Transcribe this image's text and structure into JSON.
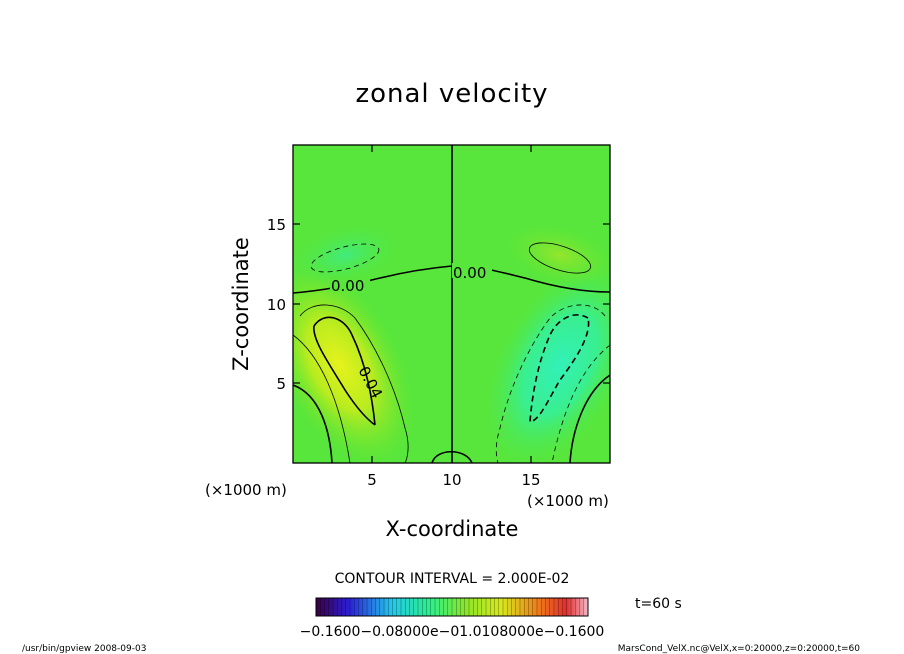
{
  "chart_data": {
    "type": "heatmap",
    "title": "zonal velocity",
    "xlabel": "X-coordinate",
    "ylabel": "Z-coordinate",
    "x_unit": "(×1000 m)",
    "y_unit": "(×1000 m)",
    "xlim": [
      0,
      20
    ],
    "ylim": [
      0,
      20
    ],
    "x_ticks": [
      "5",
      "10",
      "15"
    ],
    "y_ticks": [
      "5",
      "10",
      "15"
    ],
    "contour_interval": "CONTOUR INTERVAL = 2.000E-02",
    "contour_labels": [
      "0.00",
      "0.00",
      "0.04"
    ],
    "colorbar_labels": "−0.1600−0.08000e−01.0108000e−0.1600",
    "colorbar_range": [
      -0.16,
      0.16
    ],
    "time_label": "t=60 s",
    "footer_left": "/usr/bin/gpview   2008-09-03",
    "footer_right": "MarsCond_VelX.nc@VelX,x=0:20000,z=0:20000,t=60"
  }
}
